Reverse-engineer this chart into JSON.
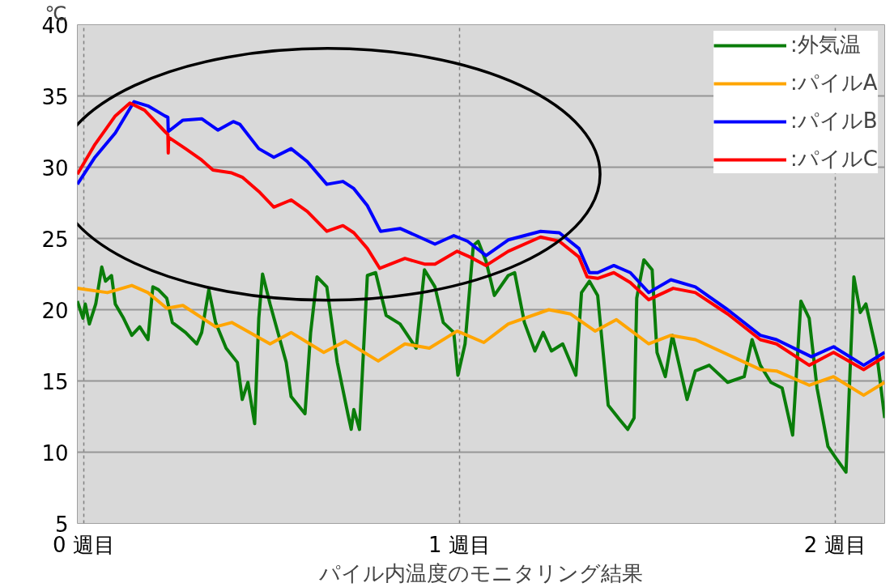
{
  "chart_data": {
    "type": "line",
    "xlabel": "パイル内温度のモニタリング結果",
    "ylabel": "℃",
    "xlim": [
      -0.017,
      2.132
    ],
    "ylim": [
      5,
      40
    ],
    "xticks": [
      {
        "value": 0,
        "label": "0 週目"
      },
      {
        "value": 1,
        "label": "1 週目"
      },
      {
        "value": 2,
        "label": "2 週目"
      }
    ],
    "yticks": [
      5,
      10,
      15,
      20,
      25,
      30,
      35,
      40
    ],
    "grid": true,
    "legend": "top right",
    "line_style": "solid",
    "series": [
      {
        "name": ":外気温",
        "color": "#0a7d0a",
        "x": [
          -0.017,
          -0.002,
          0.004,
          0.015,
          0.032,
          0.048,
          0.058,
          0.074,
          0.084,
          0.106,
          0.128,
          0.149,
          0.171,
          0.184,
          0.199,
          0.221,
          0.236,
          0.271,
          0.301,
          0.314,
          0.333,
          0.351,
          0.379,
          0.409,
          0.422,
          0.437,
          0.455,
          0.466,
          0.476,
          0.496,
          0.517,
          0.539,
          0.552,
          0.589,
          0.604,
          0.621,
          0.647,
          0.675,
          0.703,
          0.712,
          0.719,
          0.734,
          0.755,
          0.777,
          0.805,
          0.842,
          0.885,
          0.907,
          0.935,
          0.957,
          0.985,
          0.996,
          1.015,
          1.037,
          1.05,
          1.071,
          1.093,
          1.13,
          1.147,
          1.173,
          1.201,
          1.223,
          1.245,
          1.275,
          1.31,
          1.325,
          1.346,
          1.368,
          1.396,
          1.426,
          1.448,
          1.465,
          1.472,
          1.491,
          1.513,
          1.526,
          1.548,
          1.567,
          1.606,
          1.628,
          1.665,
          1.714,
          1.758,
          1.779,
          1.801,
          1.829,
          1.859,
          1.887,
          1.909,
          1.931,
          1.952,
          1.981,
          2.002,
          2.029,
          2.05,
          2.067,
          2.082,
          2.11,
          2.132
        ],
        "values": [
          20.6,
          19.4,
          20.4,
          19.0,
          20.4,
          23.0,
          22.0,
          22.4,
          20.4,
          19.4,
          18.2,
          18.8,
          17.9,
          21.6,
          21.4,
          20.8,
          19.1,
          18.4,
          17.6,
          18.4,
          21.4,
          19.1,
          17.3,
          16.3,
          13.7,
          14.9,
          12.0,
          19.4,
          22.5,
          20.4,
          18.4,
          16.3,
          13.9,
          12.7,
          18.4,
          22.3,
          21.6,
          16.3,
          12.7,
          11.6,
          13.0,
          11.6,
          22.4,
          22.6,
          19.6,
          19.0,
          17.3,
          22.8,
          21.6,
          19.1,
          18.4,
          15.4,
          17.6,
          24.5,
          24.8,
          23.4,
          21.0,
          22.4,
          22.6,
          19.1,
          17.1,
          18.4,
          17.1,
          17.6,
          15.4,
          21.2,
          22.0,
          21.0,
          13.3,
          12.3,
          11.6,
          12.4,
          20.8,
          23.5,
          22.8,
          17.0,
          15.3,
          18.2,
          13.7,
          15.7,
          16.1,
          14.9,
          15.3,
          17.9,
          16.1,
          14.9,
          14.5,
          11.2,
          20.6,
          19.4,
          14.5,
          10.4,
          9.6,
          8.6,
          22.3,
          19.8,
          20.4,
          17.1,
          12.4
        ]
      },
      {
        "name": ":パイルA",
        "color": "#ffa500",
        "x": [
          -0.017,
          0.063,
          0.128,
          0.171,
          0.221,
          0.264,
          0.351,
          0.394,
          0.496,
          0.552,
          0.639,
          0.697,
          0.784,
          0.855,
          0.92,
          0.994,
          1.065,
          1.13,
          1.238,
          1.296,
          1.361,
          1.418,
          1.504,
          1.563,
          1.628,
          1.801,
          1.844,
          1.931,
          1.996,
          2.076,
          2.132
        ],
        "values": [
          21.5,
          21.2,
          21.7,
          21.2,
          20.1,
          20.3,
          18.8,
          19.1,
          17.6,
          18.4,
          17.0,
          17.8,
          16.4,
          17.6,
          17.3,
          18.5,
          17.7,
          19.0,
          20.0,
          19.7,
          18.5,
          19.3,
          17.6,
          18.2,
          17.9,
          15.8,
          15.7,
          14.7,
          15.3,
          14.0,
          14.9
        ]
      },
      {
        "name": ":パイルB",
        "color": "#0000ff",
        "x": [
          -0.017,
          0.03,
          0.084,
          0.134,
          0.171,
          0.216,
          0.224,
          0.225,
          0.264,
          0.314,
          0.357,
          0.398,
          0.416,
          0.466,
          0.506,
          0.552,
          0.595,
          0.647,
          0.69,
          0.719,
          0.755,
          0.79,
          0.842,
          0.885,
          0.935,
          0.985,
          1.022,
          1.071,
          1.13,
          1.216,
          1.266,
          1.318,
          1.346,
          1.368,
          1.411,
          1.455,
          1.504,
          1.563,
          1.628,
          1.714,
          1.801,
          1.844,
          1.937,
          1.996,
          2.076,
          2.132
        ],
        "values": [
          28.8,
          30.7,
          32.4,
          34.6,
          34.3,
          33.6,
          33.5,
          32.5,
          33.3,
          33.4,
          32.6,
          33.2,
          33.0,
          31.3,
          30.7,
          31.3,
          30.4,
          28.8,
          29.0,
          28.5,
          27.3,
          25.5,
          25.7,
          25.2,
          24.6,
          25.2,
          24.8,
          23.8,
          24.9,
          25.5,
          25.4,
          24.3,
          22.6,
          22.6,
          23.1,
          22.6,
          21.2,
          22.1,
          21.6,
          20.0,
          18.2,
          17.9,
          16.7,
          17.4,
          16.1,
          17.0
        ]
      },
      {
        "name": ":パイルC",
        "color": "#ff0000",
        "x": [
          -0.017,
          0.03,
          0.084,
          0.123,
          0.162,
          0.216,
          0.224,
          0.225,
          0.226,
          0.271,
          0.314,
          0.344,
          0.394,
          0.422,
          0.466,
          0.506,
          0.552,
          0.595,
          0.647,
          0.69,
          0.719,
          0.755,
          0.788,
          0.855,
          0.907,
          0.935,
          0.994,
          1.028,
          1.071,
          1.13,
          1.216,
          1.266,
          1.318,
          1.34,
          1.368,
          1.411,
          1.455,
          1.504,
          1.569,
          1.628,
          1.714,
          1.801,
          1.844,
          1.931,
          1.996,
          2.076,
          2.132
        ],
        "values": [
          29.5,
          31.6,
          33.6,
          34.5,
          34.0,
          32.5,
          32.3,
          31.0,
          32.1,
          31.3,
          30.5,
          29.8,
          29.6,
          29.3,
          28.3,
          27.2,
          27.7,
          26.9,
          25.5,
          25.9,
          25.4,
          24.3,
          22.9,
          23.6,
          23.2,
          23.2,
          24.1,
          23.7,
          23.1,
          24.1,
          25.1,
          24.8,
          23.7,
          22.3,
          22.2,
          22.6,
          21.9,
          20.7,
          21.5,
          21.2,
          19.7,
          17.9,
          17.6,
          16.1,
          17.0,
          15.8,
          16.7
        ]
      }
    ]
  }
}
